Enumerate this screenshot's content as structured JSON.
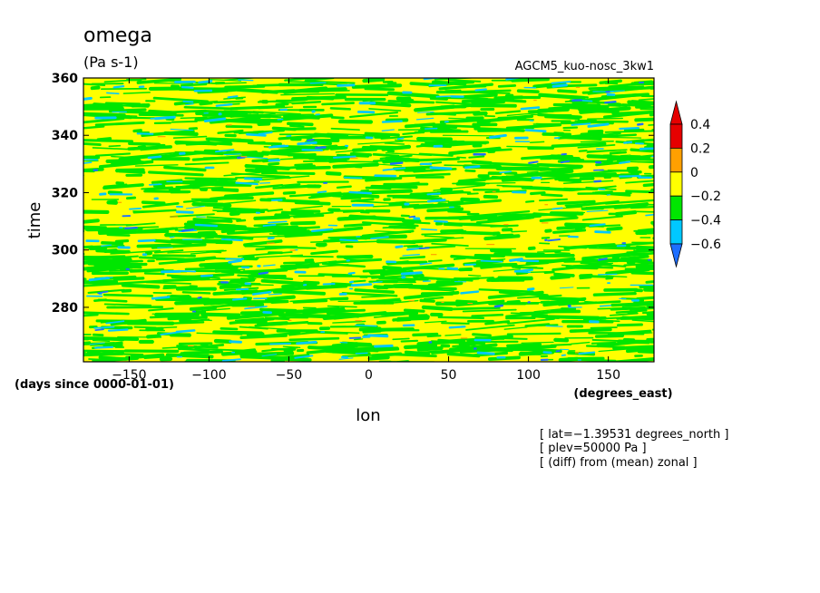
{
  "chart_data": {
    "type": "heatmap",
    "title": "omega",
    "units": "(Pa s-1)",
    "experiment": "AGCM5_kuo-nosc_3kw1",
    "xlabel": "lon",
    "x_units": "(degrees_east)",
    "ylabel": "time",
    "y_units": "(days since 0000-01-01)",
    "xlim": [
      -178.6,
      178.6
    ],
    "ylim": [
      261,
      360
    ],
    "x_ticks": [
      -150,
      -100,
      -50,
      0,
      50,
      100,
      150
    ],
    "x_tick_labels": [
      "−150",
      "−100",
      "−50",
      "0",
      "50",
      "100",
      "150"
    ],
    "y_ticks": [
      280,
      300,
      320,
      340,
      360
    ],
    "y_tick_labels": [
      "280",
      "300",
      "320",
      "340",
      "360"
    ],
    "colorbar": {
      "levels": [
        -0.6,
        -0.4,
        -0.2,
        0,
        0.2,
        0.4
      ],
      "level_labels": [
        "−0.6",
        "−0.4",
        "−0.2",
        "0",
        "0.2",
        "0.4"
      ],
      "colors": [
        "#1e6eff",
        "#00c8ff",
        "#00e600",
        "#ffff00",
        "#ffa000",
        "#e60000"
      ],
      "low_color": "#1e6eff",
      "high_color": "#e60000"
    },
    "field_note": "Hovmoller diagram of zonal-mean-removed omega; field dominated by 0 to 0.2 (yellow) and -0.2 to 0 (green) with scattered negative cores",
    "notes": [
      "[ lat=−1.39531 degrees_north ]",
      "[ plev=50000 Pa ]",
      "[ (diff) from (mean) zonal ]"
    ]
  }
}
